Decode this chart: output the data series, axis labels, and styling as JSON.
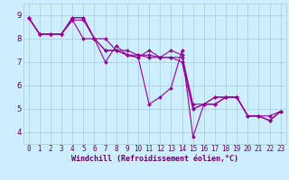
{
  "xlabel": "Windchill (Refroidissement éolien,°C)",
  "background_color": "#cceeff",
  "grid_color": "#aacccc",
  "line_color": "#990099",
  "xlim": [
    -0.5,
    23.5
  ],
  "ylim": [
    3.5,
    9.5
  ],
  "xticks": [
    0,
    1,
    2,
    3,
    4,
    5,
    6,
    7,
    8,
    9,
    10,
    11,
    12,
    13,
    14,
    15,
    16,
    17,
    18,
    19,
    20,
    21,
    22,
    23
  ],
  "yticks": [
    4,
    5,
    6,
    7,
    8,
    9
  ],
  "series": [
    [
      8.9,
      8.2,
      8.2,
      8.2,
      8.9,
      8.9,
      8.0,
      8.0,
      7.5,
      7.3,
      7.3,
      7.2,
      7.2,
      7.2,
      7.2,
      5.0,
      5.2,
      5.5,
      5.5,
      5.5,
      4.7,
      4.7,
      4.7,
      4.9
    ],
    [
      8.9,
      8.2,
      8.2,
      8.2,
      8.9,
      8.9,
      8.0,
      7.5,
      7.5,
      7.5,
      7.3,
      7.3,
      7.2,
      7.5,
      7.3,
      5.2,
      5.2,
      5.2,
      5.5,
      5.5,
      4.7,
      4.7,
      4.5,
      4.9
    ],
    [
      8.9,
      8.2,
      8.2,
      8.2,
      8.8,
      8.8,
      8.0,
      7.5,
      7.5,
      7.3,
      7.2,
      5.2,
      5.5,
      5.9,
      7.5,
      3.8,
      5.2,
      5.2,
      5.5,
      5.5,
      4.7,
      4.7,
      4.5,
      4.9
    ],
    [
      8.9,
      8.2,
      8.2,
      8.2,
      8.8,
      8.0,
      8.0,
      7.0,
      7.7,
      7.3,
      7.2,
      7.5,
      7.2,
      7.2,
      7.0,
      5.0,
      5.2,
      5.5,
      5.5,
      5.5,
      4.7,
      4.7,
      4.5,
      4.9
    ]
  ],
  "marker": "D",
  "markersize": 2.0,
  "linewidth": 0.8,
  "font_color": "#660066",
  "tick_fontsize": 5.5,
  "label_fontsize": 6.0
}
